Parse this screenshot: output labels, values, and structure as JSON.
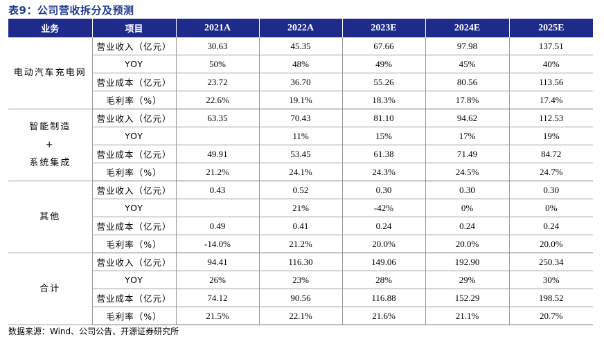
{
  "title": "表9：公司营收拆分及预测",
  "header": {
    "segment": "业务",
    "item": "项目",
    "years": [
      "2021A",
      "2022A",
      "2023E",
      "2024E",
      "2025E"
    ]
  },
  "groups": [
    {
      "segment_lines": [
        "电动汽车充电网"
      ],
      "rows": [
        {
          "item": "营业收入（亿元）",
          "values": [
            "30.63",
            "45.35",
            "67.66",
            "97.98",
            "137.51"
          ]
        },
        {
          "item": "YOY",
          "values": [
            "50%",
            "48%",
            "49%",
            "45%",
            "40%"
          ]
        },
        {
          "item": "营业成本（亿元）",
          "values": [
            "23.72",
            "36.70",
            "55.26",
            "80.56",
            "113.56"
          ]
        },
        {
          "item": "毛利率（%）",
          "values": [
            "22.6%",
            "19.1%",
            "18.3%",
            "17.8%",
            "17.4%"
          ]
        }
      ]
    },
    {
      "segment_lines": [
        "智能制造",
        "+",
        "系统集成"
      ],
      "rows": [
        {
          "item": "营业收入（亿元）",
          "values": [
            "63.35",
            "70.43",
            "81.10",
            "94.62",
            "112.53"
          ]
        },
        {
          "item": "YOY",
          "values": [
            "",
            "11%",
            "15%",
            "17%",
            "19%"
          ]
        },
        {
          "item": "营业成本（亿元）",
          "values": [
            "49.91",
            "53.45",
            "61.38",
            "71.49",
            "84.72"
          ]
        },
        {
          "item": "毛利率（%）",
          "values": [
            "21.2%",
            "24.1%",
            "24.3%",
            "24.5%",
            "24.7%"
          ]
        }
      ]
    },
    {
      "segment_lines": [
        "其他"
      ],
      "rows": [
        {
          "item": "营业收入（亿元）",
          "values": [
            "0.43",
            "0.52",
            "0.30",
            "0.30",
            "0.30"
          ]
        },
        {
          "item": "YOY",
          "values": [
            "",
            "21%",
            "-42%",
            "0%",
            "0%"
          ]
        },
        {
          "item": "营业成本（亿元）",
          "values": [
            "0.49",
            "0.41",
            "0.24",
            "0.24",
            "0.24"
          ]
        },
        {
          "item": "毛利率（%）",
          "values": [
            "-14.0%",
            "21.2%",
            "20.0%",
            "20.0%",
            "20.0%"
          ]
        }
      ]
    },
    {
      "segment_lines": [
        "合计"
      ],
      "rows": [
        {
          "item": "营业收入（亿元）",
          "values": [
            "94.41",
            "116.30",
            "149.06",
            "192.90",
            "250.34"
          ]
        },
        {
          "item": "YOY",
          "values": [
            "26%",
            "23%",
            "28%",
            "29%",
            "30%"
          ]
        },
        {
          "item": "营业成本（亿元）",
          "values": [
            "74.12",
            "90.56",
            "116.88",
            "152.29",
            "198.52"
          ]
        },
        {
          "item": "毛利率（%）",
          "values": [
            "21.5%",
            "22.1%",
            "21.6%",
            "21.1%",
            "20.7%"
          ]
        }
      ]
    }
  ],
  "source": "数据来源：Wind、公司公告、开源证券研究所",
  "colors": {
    "title": "#1f3a93",
    "header_bg": "#1e2b8a",
    "header_text": "#ffffff",
    "grid": "#9a9a9a"
  }
}
